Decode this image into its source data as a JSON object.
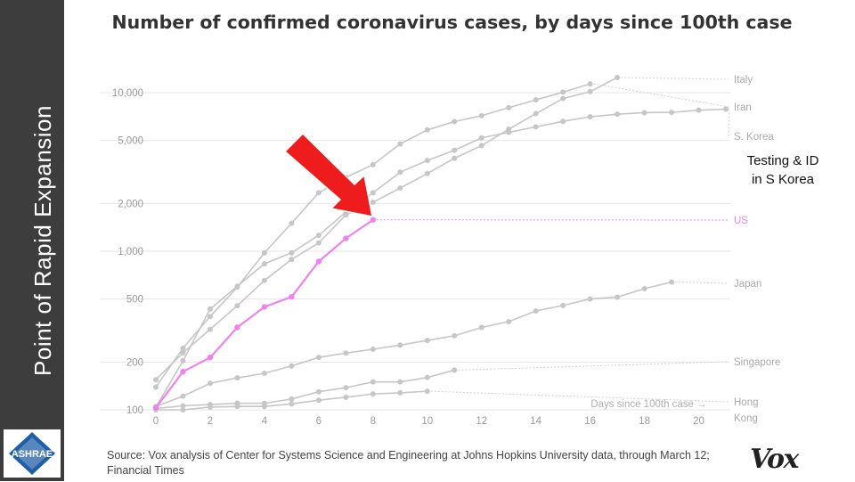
{
  "sidebar": {
    "title": "Point of Rapid Expansion",
    "logo_text": "ASHRAE"
  },
  "chart_data": {
    "type": "line",
    "title": "Number of confirmed coronavirus cases, by days since 100th case",
    "xlabel": "Days since 100th case →",
    "ylabel": "",
    "yscale": "log",
    "ylim": [
      100,
      14000
    ],
    "xlim": [
      0,
      21
    ],
    "x_ticks": [
      0,
      2,
      4,
      6,
      8,
      10,
      12,
      14,
      16,
      18,
      20
    ],
    "y_ticks": [
      100,
      200,
      500,
      1000,
      2000,
      5000,
      10000
    ],
    "y_tick_labels": [
      "100",
      "200",
      "500",
      "1,000",
      "2,000",
      "5,000",
      "10,000"
    ],
    "grid": "horizontal",
    "series": [
      {
        "name": "Italy",
        "color": "#c4c4c4",
        "x": [
          0,
          1,
          2,
          3,
          4,
          5,
          6,
          7,
          8,
          9,
          10,
          11,
          12,
          13,
          14,
          15,
          16,
          17
        ],
        "y": [
          155,
          229,
          322,
          453,
          655,
          888,
          1128,
          1694,
          2036,
          2502,
          3089,
          3858,
          4636,
          5883,
          7375,
          9172,
          10149,
          12462
        ]
      },
      {
        "name": "Iran",
        "color": "#c4c4c4",
        "x": [
          0,
          1,
          2,
          3,
          4,
          5,
          6,
          7,
          8,
          9,
          10,
          11,
          12,
          13,
          14,
          15,
          16
        ],
        "y": [
          139,
          245,
          388,
          593,
          978,
          1501,
          2336,
          2922,
          3513,
          4747,
          5823,
          6566,
          7161,
          8042,
          9000,
          10075,
          11364
        ]
      },
      {
        "name": "S. Korea",
        "color": "#c4c4c4",
        "x": [
          0,
          1,
          2,
          3,
          4,
          5,
          6,
          7,
          8,
          9,
          10,
          11,
          12,
          13,
          14,
          15,
          16,
          17,
          18,
          19,
          20,
          21
        ],
        "y": [
          104,
          204,
          433,
          602,
          833,
          977,
          1261,
          1766,
          2337,
          3150,
          3736,
          4335,
          5186,
          5621,
          6088,
          6593,
          7041,
          7313,
          7478,
          7513,
          7755,
          7869
        ]
      },
      {
        "name": "US",
        "color": "#ee82ee",
        "x": [
          0,
          1,
          2,
          3,
          4,
          5,
          6,
          7,
          8
        ],
        "y": [
          103,
          174,
          214,
          331,
          446,
          516,
          862,
          1206,
          1578
        ],
        "label_style": "highlight"
      },
      {
        "name": "Japan",
        "color": "#c4c4c4",
        "x": [
          0,
          1,
          2,
          3,
          4,
          5,
          6,
          7,
          8,
          9,
          10,
          11,
          12,
          13,
          14,
          15,
          16,
          17,
          18,
          19
        ],
        "y": [
          105,
          122,
          147,
          159,
          170,
          189,
          214,
          228,
          241,
          256,
          274,
          293,
          331,
          360,
          420,
          455,
          500,
          514,
          581,
          639
        ]
      },
      {
        "name": "Singapore",
        "color": "#c4c4c4",
        "x": [
          0,
          1,
          2,
          3,
          4,
          5,
          6,
          7,
          8,
          9,
          10,
          11
        ],
        "y": [
          102,
          106,
          108,
          110,
          110,
          117,
          130,
          138,
          150,
          150,
          160,
          178
        ]
      },
      {
        "name": "Hong Kong",
        "color": "#c4c4c4",
        "x": [
          0,
          1,
          2,
          3,
          4,
          5,
          6,
          7,
          8,
          9,
          10
        ],
        "y": [
          100,
          100,
          104,
          105,
          105,
          109,
          115,
          120,
          126,
          128,
          131
        ]
      }
    ]
  },
  "annotation": {
    "text_line1": "Testing & ID",
    "text_line2": "in S Korea"
  },
  "arrow": {
    "color": "#ee1c1c"
  },
  "source": "Source: Vox analysis of Center for Systems Science and Engineering at Johns Hopkins University data, through March 12; Financial Times",
  "brand": "Vox"
}
